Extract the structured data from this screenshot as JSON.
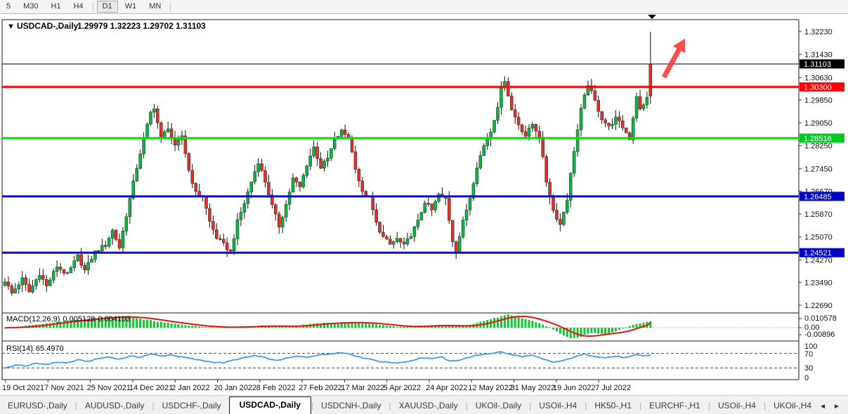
{
  "toolbar": {
    "timeframes": [
      {
        "label": "5",
        "active": false
      },
      {
        "label": "M30",
        "active": false
      },
      {
        "label": "H1",
        "active": false
      },
      {
        "label": "H4",
        "active": false
      },
      {
        "label": "D1",
        "active": true
      },
      {
        "label": "W1",
        "active": false
      },
      {
        "label": "MN",
        "active": false
      }
    ]
  },
  "chart": {
    "dropdown_glyph": "▼",
    "symbol_label": "USDCAD-,Daily",
    "ohlc_text": "1.29979 1.32223 1.29702 1.31103"
  },
  "colors": {
    "bull_candle": "#0fb344",
    "bear_candle": "#dd3228",
    "wick": "#111111",
    "red_line": "#fe0000",
    "green_line": "#00e400",
    "blue_line": "#0a0ad0",
    "black_line": "#000000",
    "macd_bar": "#0fc732",
    "macd_signal": "#e81111",
    "rsi_line": "#3e9ce8",
    "arrow": "#f4413c",
    "tag_black": "#000000",
    "tag_red": "#fe0000",
    "tag_green": "#00ca1f",
    "tag_blue": "#0000c8"
  },
  "price_axis": {
    "ticks": [
      1.3223,
      1.3143,
      1.3063,
      1.2985,
      1.2905,
      1.2825,
      1.2745,
      1.2667,
      1.2587,
      1.2507,
      1.2427,
      1.2349,
      1.2269
    ],
    "markers": [
      {
        "value": 1.31103,
        "bg": "#000000",
        "fg": "#ffffff",
        "name": "current-price-tag"
      },
      {
        "value": 1.303,
        "bg": "#fe0000",
        "fg": "#ffffff",
        "name": "resistance-price-tag"
      },
      {
        "value": 1.28516,
        "bg": "#00ca1f",
        "fg": "#ffffff",
        "name": "support-green-price-tag"
      },
      {
        "value": 1.26485,
        "bg": "#0000c8",
        "fg": "#ffffff",
        "name": "support-blue-upper-price-tag"
      },
      {
        "value": 1.24521,
        "bg": "#0000c8",
        "fg": "#ffffff",
        "name": "support-blue-lower-price-tag"
      }
    ]
  },
  "indicators": {
    "macd": {
      "label": "MACD(12,26,9)",
      "value_main": "0.005128",
      "value_signal": "0.004103",
      "axis_labels": [
        "0.010578",
        "0.00",
        "-0.00896"
      ]
    },
    "rsi": {
      "label": "RSI(14)",
      "value": "65.4970",
      "axis_labels": [
        "100",
        "70",
        "30",
        "0"
      ],
      "levels": [
        70,
        30
      ]
    }
  },
  "date_axis": {
    "labels": [
      "19 Oct 2021",
      "7 Nov 2021",
      "25 Nov 2021",
      "14 Dec 2021",
      "2 Jan 2022",
      "20 Jan 2022",
      "8 Feb 2022",
      "27 Feb 2022",
      "17 Mar 2022",
      "5 Apr 2022",
      "24 Apr 2022",
      "12 May 2022",
      "31 May 2022",
      "19 Jun 2022",
      "7 Jul 2022"
    ]
  },
  "tabbar": {
    "tabs": [
      "EURUSD-,Daily",
      "AUDUSD-,Daily",
      "USDCHF-,Daily",
      "USDCAD-,Daily",
      "USDCNH-,Daily",
      "XAUUSD-,Daily",
      "UKOil-,Daily",
      "USOil-,H4",
      "HK50-,H1",
      "EURCHF-,H1",
      "USOil-,H4",
      "UKOil-,H4"
    ],
    "active_index": 3,
    "scroll_left_glyph": "◄",
    "scroll_right_glyph": "►"
  },
  "chart_data": {
    "type": "candlestick",
    "symbol": "USDCAD",
    "timeframe": "Daily",
    "num_candles": 187,
    "last_candle": {
      "open": 1.29979,
      "high": 1.32223,
      "low": 1.29702,
      "close": 1.31103,
      "display_color": "red"
    },
    "current_price_line": 1.31103,
    "horizontal_lines": [
      {
        "price": 1.303,
        "color": "#fe0000",
        "width": 3,
        "name": "hline-resistance-1-30300"
      },
      {
        "price": 1.28516,
        "color": "#00e400",
        "width": 3,
        "name": "hline-support-1-28516"
      },
      {
        "price": 1.26485,
        "color": "#0a0ad0",
        "width": 3,
        "name": "hline-support-1-26485"
      },
      {
        "price": 1.24521,
        "color": "#0a0ad0",
        "width": 3,
        "name": "hline-support-1-24521"
      }
    ],
    "price_range_view": [
      1.2269,
      1.3223
    ],
    "price_path_anchors": [
      [
        0,
        1.2355
      ],
      [
        2,
        1.231
      ],
      [
        5,
        1.236
      ],
      [
        7,
        1.2315
      ],
      [
        10,
        1.238
      ],
      [
        12,
        1.2335
      ],
      [
        15,
        1.2405
      ],
      [
        18,
        1.2375
      ],
      [
        21,
        1.244
      ],
      [
        23,
        1.239
      ],
      [
        26,
        1.2455
      ],
      [
        29,
        1.248
      ],
      [
        31,
        1.253
      ],
      [
        33,
        1.247
      ],
      [
        36,
        1.264
      ],
      [
        38,
        1.275
      ],
      [
        40,
        1.285
      ],
      [
        42,
        1.294
      ],
      [
        43,
        1.296
      ],
      [
        45,
        1.285
      ],
      [
        47,
        1.289
      ],
      [
        49,
        1.282
      ],
      [
        51,
        1.286
      ],
      [
        53,
        1.274
      ],
      [
        55,
        1.266
      ],
      [
        57,
        1.265
      ],
      [
        59,
        1.256
      ],
      [
        61,
        1.2505
      ],
      [
        63,
        1.248
      ],
      [
        65,
        1.2455
      ],
      [
        67,
        1.256
      ],
      [
        69,
        1.2625
      ],
      [
        71,
        1.27
      ],
      [
        73,
        1.277
      ],
      [
        75,
        1.27
      ],
      [
        77,
        1.2615
      ],
      [
        79,
        1.2545
      ],
      [
        81,
        1.262
      ],
      [
        83,
        1.271
      ],
      [
        85,
        1.268
      ],
      [
        87,
        1.276
      ],
      [
        89,
        1.282
      ],
      [
        91,
        1.275
      ],
      [
        93,
        1.278
      ],
      [
        95,
        1.2845
      ],
      [
        97,
        1.2875
      ],
      [
        99,
        1.2855
      ],
      [
        101,
        1.275
      ],
      [
        103,
        1.266
      ],
      [
        105,
        1.2645
      ],
      [
        107,
        1.2555
      ],
      [
        109,
        1.2505
      ],
      [
        111,
        1.248
      ],
      [
        113,
        1.25
      ],
      [
        115,
        1.2475
      ],
      [
        117,
        1.2515
      ],
      [
        119,
        1.256
      ],
      [
        121,
        1.263
      ],
      [
        123,
        1.26
      ],
      [
        125,
        1.2655
      ],
      [
        127,
        1.264
      ],
      [
        129,
        1.2495
      ],
      [
        130,
        1.246
      ],
      [
        132,
        1.256
      ],
      [
        134,
        1.2645
      ],
      [
        136,
        1.2755
      ],
      [
        138,
        1.2825
      ],
      [
        140,
        1.2875
      ],
      [
        142,
        1.2965
      ],
      [
        143,
        1.302
      ],
      [
        144,
        1.3055
      ],
      [
        146,
        1.295
      ],
      [
        148,
        1.29
      ],
      [
        150,
        1.286
      ],
      [
        152,
        1.29
      ],
      [
        154,
        1.286
      ],
      [
        156,
        1.27
      ],
      [
        158,
        1.26
      ],
      [
        160,
        1.255
      ],
      [
        162,
        1.264
      ],
      [
        164,
        1.281
      ],
      [
        166,
        1.295
      ],
      [
        168,
        1.304
      ],
      [
        170,
        1.298
      ],
      [
        172,
        1.292
      ],
      [
        174,
        1.289
      ],
      [
        176,
        1.292
      ],
      [
        178,
        1.289
      ],
      [
        180,
        1.285
      ],
      [
        182,
        1.3
      ],
      [
        183,
        1.295
      ],
      [
        184,
        1.2965
      ],
      [
        185,
        1.2998
      ],
      [
        186,
        1.31103
      ]
    ],
    "macd": {
      "axis_max": 0.010578,
      "axis_min": -0.00896,
      "final_main": 0.005128,
      "final_signal": 0.004103,
      "anchors": [
        [
          0,
          -0.0004
        ],
        [
          4,
          0.0008
        ],
        [
          10,
          0.0028
        ],
        [
          16,
          0.005
        ],
        [
          22,
          0.0068
        ],
        [
          27,
          0.0082
        ],
        [
          31,
          0.009
        ],
        [
          34,
          0.0088
        ],
        [
          38,
          0.0075
        ],
        [
          42,
          0.006
        ],
        [
          46,
          0.0042
        ],
        [
          50,
          0.0028
        ],
        [
          54,
          0.0015
        ],
        [
          58,
          0.0007
        ],
        [
          62,
          0.0004
        ],
        [
          66,
          0.0006
        ],
        [
          70,
          0.0012
        ],
        [
          74,
          0.0016
        ],
        [
          78,
          0.001
        ],
        [
          82,
          0.0013
        ],
        [
          86,
          0.0024
        ],
        [
          90,
          0.0034
        ],
        [
          94,
          0.004
        ],
        [
          98,
          0.0044
        ],
        [
          102,
          0.004
        ],
        [
          106,
          0.003
        ],
        [
          110,
          0.0016
        ],
        [
          114,
          0.0005
        ],
        [
          118,
          0.001
        ],
        [
          122,
          0.0018
        ],
        [
          126,
          0.002
        ],
        [
          129,
          0.001
        ],
        [
          132,
          0.0014
        ],
        [
          136,
          0.004
        ],
        [
          140,
          0.007
        ],
        [
          143,
          0.0092
        ],
        [
          145,
          0.0105
        ],
        [
          147,
          0.0094
        ],
        [
          149,
          0.0078
        ],
        [
          151,
          0.0062
        ],
        [
          153,
          0.0046
        ],
        [
          155,
          0.0026
        ],
        [
          157,
          0.0002
        ],
        [
          159,
          -0.0032
        ],
        [
          161,
          -0.0062
        ],
        [
          163,
          -0.0089
        ],
        [
          165,
          -0.0083
        ],
        [
          167,
          -0.006
        ],
        [
          169,
          -0.0042
        ],
        [
          171,
          -0.0047
        ],
        [
          173,
          -0.005
        ],
        [
          175,
          -0.0038
        ],
        [
          177,
          -0.0018
        ],
        [
          179,
          0.0006
        ],
        [
          181,
          0.0022
        ],
        [
          183,
          0.0036
        ],
        [
          185,
          0.0046
        ],
        [
          186,
          0.005128
        ]
      ]
    },
    "rsi": {
      "final": 65.497,
      "levels": [
        70,
        30
      ],
      "anchors": [
        [
          0,
          29
        ],
        [
          3,
          38
        ],
        [
          6,
          36
        ],
        [
          9,
          42
        ],
        [
          12,
          40
        ],
        [
          15,
          46
        ],
        [
          18,
          44
        ],
        [
          21,
          52
        ],
        [
          24,
          48
        ],
        [
          27,
          56
        ],
        [
          30,
          60
        ],
        [
          33,
          54
        ],
        [
          36,
          62
        ],
        [
          39,
          60
        ],
        [
          42,
          68
        ],
        [
          45,
          63
        ],
        [
          48,
          66
        ],
        [
          51,
          60
        ],
        [
          54,
          55
        ],
        [
          57,
          50
        ],
        [
          60,
          46
        ],
        [
          63,
          44
        ],
        [
          66,
          52
        ],
        [
          69,
          58
        ],
        [
          72,
          64
        ],
        [
          75,
          58
        ],
        [
          78,
          50
        ],
        [
          81,
          56
        ],
        [
          84,
          62
        ],
        [
          87,
          60
        ],
        [
          90,
          65
        ],
        [
          93,
          68
        ],
        [
          96,
          72
        ],
        [
          99,
          70
        ],
        [
          102,
          60
        ],
        [
          105,
          55
        ],
        [
          108,
          48
        ],
        [
          111,
          45
        ],
        [
          114,
          44
        ],
        [
          117,
          50
        ],
        [
          120,
          58
        ],
        [
          123,
          56
        ],
        [
          126,
          60
        ],
        [
          128,
          48
        ],
        [
          131,
          52
        ],
        [
          134,
          60
        ],
        [
          137,
          66
        ],
        [
          140,
          70
        ],
        [
          143,
          74
        ],
        [
          146,
          66
        ],
        [
          149,
          62
        ],
        [
          152,
          64
        ],
        [
          155,
          54
        ],
        [
          158,
          46
        ],
        [
          161,
          50
        ],
        [
          164,
          60
        ],
        [
          167,
          68
        ],
        [
          170,
          62
        ],
        [
          173,
          58
        ],
        [
          176,
          62
        ],
        [
          179,
          58
        ],
        [
          182,
          66
        ],
        [
          184,
          63
        ],
        [
          186,
          65.497
        ]
      ]
    }
  }
}
